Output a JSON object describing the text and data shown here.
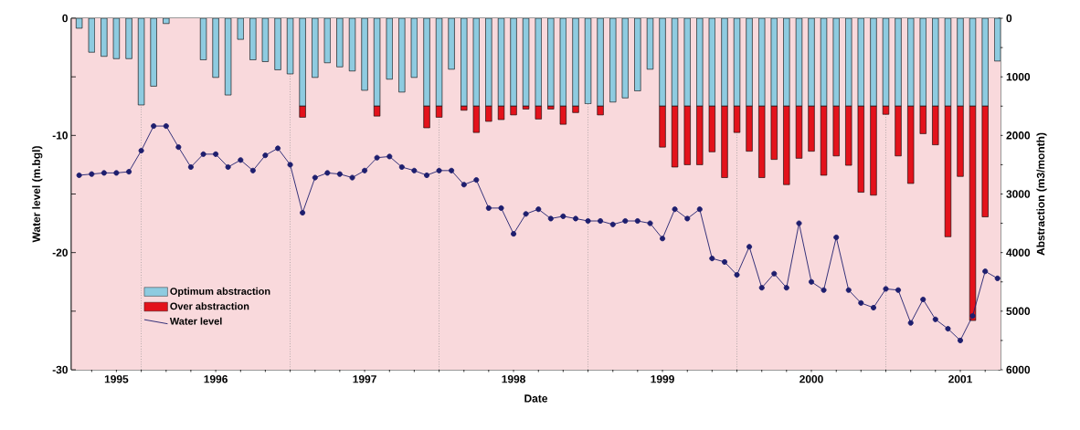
{
  "chart_data": {
    "type": "bar",
    "stacked": true,
    "xlabel": "Date",
    "ylabel": "Water level (m.bgl)",
    "y2label": "Abstraction (m3/month)",
    "x": [
      1995.083,
      1995.167,
      1995.25,
      1995.333,
      1995.417,
      1995.5,
      1995.583,
      1995.667,
      1995.75,
      1995.833,
      1995.917,
      1996,
      1996.083,
      1996.167,
      1996.25,
      1996.333,
      1996.417,
      1996.5,
      1996.583,
      1996.667,
      1996.75,
      1996.833,
      1996.917,
      1997,
      1997.083,
      1997.167,
      1997.25,
      1997.333,
      1997.417,
      1997.5,
      1997.583,
      1997.667,
      1997.75,
      1997.833,
      1997.917,
      1998,
      1998.083,
      1998.167,
      1998.25,
      1998.333,
      1998.417,
      1998.5,
      1998.583,
      1998.667,
      1998.75,
      1998.833,
      1998.917,
      1999,
      1999.083,
      1999.167,
      1999.25,
      1999.333,
      1999.417,
      1999.5,
      1999.583,
      1999.667,
      1999.75,
      1999.833,
      1999.917,
      2000,
      2000.083,
      2000.167,
      2000.25,
      2000.333,
      2000.417,
      2000.5,
      2000.583,
      2000.667,
      2000.75,
      2000.833,
      2000.917,
      2001,
      2001.083,
      2001.167,
      2001.25
    ],
    "series": [
      {
        "name": "Optimum abstraction",
        "axis": "y2",
        "color": "#8ecbe0",
        "values": [
          170,
          580,
          650,
          690,
          690,
          1480,
          1160,
          90,
          null,
          null,
          710,
          1010,
          1310,
          360,
          710,
          740,
          880,
          950,
          1500,
          1010,
          760,
          830,
          900,
          1230,
          1500,
          1040,
          1260,
          1010,
          1500,
          1500,
          870,
          1500,
          1500,
          1500,
          1500,
          1500,
          1500,
          1500,
          1500,
          1500,
          1500,
          1460,
          1500,
          1430,
          1360,
          1240,
          870,
          1500,
          1500,
          1500,
          1500,
          1500,
          1500,
          1500,
          1500,
          1500,
          1500,
          1500,
          1500,
          1500,
          1500,
          1500,
          1500,
          1500,
          1500,
          1500,
          1500,
          1500,
          1500,
          1500,
          1500,
          1500,
          1500,
          1500,
          730
        ]
      },
      {
        "name": "Over abstraction",
        "axis": "y2",
        "color": "#e3121b",
        "values": [
          null,
          null,
          null,
          null,
          null,
          null,
          null,
          null,
          null,
          null,
          null,
          null,
          null,
          null,
          null,
          null,
          null,
          null,
          190,
          null,
          null,
          null,
          null,
          null,
          170,
          null,
          null,
          null,
          370,
          190,
          null,
          70,
          450,
          260,
          230,
          150,
          50,
          220,
          50,
          310,
          110,
          null,
          150,
          null,
          null,
          null,
          null,
          700,
          1040,
          1000,
          1000,
          780,
          1220,
          450,
          770,
          1220,
          910,
          1340,
          890,
          770,
          1180,
          850,
          1010,
          1470,
          1520,
          140,
          850,
          1320,
          470,
          660,
          2230,
          1200,
          3660,
          1890,
          null
        ]
      },
      {
        "name": "Water level",
        "type": "line",
        "axis": "y",
        "color": "#1e1e6e",
        "marker": "circle",
        "values": [
          -13.4,
          -13.3,
          -13.2,
          -13.2,
          -13.1,
          -11.3,
          -9.2,
          -9.2,
          -11.0,
          -12.7,
          -11.6,
          -11.6,
          -12.7,
          -12.1,
          -13.0,
          -11.7,
          -11.1,
          -12.5,
          -16.6,
          -13.6,
          -13.2,
          -13.3,
          -13.6,
          -13.0,
          -11.9,
          -11.8,
          -12.7,
          -13.0,
          -13.4,
          -13.0,
          -13.0,
          -14.2,
          -13.8,
          -16.2,
          -16.2,
          -18.4,
          -16.7,
          -16.3,
          -17.1,
          -16.9,
          -17.1,
          -17.3,
          -17.3,
          -17.6,
          -17.3,
          -17.3,
          -17.5,
          -18.8,
          -16.3,
          -17.1,
          -16.3,
          -20.5,
          -20.8,
          -21.9,
          -19.5,
          -23.0,
          -21.8,
          -23.0,
          -17.5,
          -22.5,
          -23.2,
          -18.7,
          -23.2,
          -24.3,
          -24.7,
          -23.1,
          -23.2,
          -26.0,
          -24.0,
          -25.7,
          -26.5,
          -27.5,
          -25.4,
          -21.6,
          -22.2
        ]
      }
    ],
    "xlim": [
      1995.03,
      2001.27
    ],
    "xticks": [
      {
        "value": 1995.167,
        "label": null
      },
      {
        "value": 1995.333,
        "label": "1995"
      },
      {
        "value": 1995.5,
        "label": null
      },
      {
        "value": 1995.667,
        "label": null
      },
      {
        "value": 1995.833,
        "label": null
      },
      1996,
      {
        "value": 1996.167,
        "label": null
      },
      {
        "value": 1996.333,
        "label": null
      },
      {
        "value": 1996.5,
        "label": null
      },
      {
        "value": 1996.667,
        "label": null
      },
      {
        "value": 1996.833,
        "label": null
      },
      1997,
      {
        "value": 1997.167,
        "label": null
      },
      {
        "value": 1997.333,
        "label": null
      },
      {
        "value": 1997.5,
        "label": null
      },
      {
        "value": 1997.667,
        "label": null
      },
      {
        "value": 1997.833,
        "label": null
      },
      1998,
      {
        "value": 1998.167,
        "label": null
      },
      {
        "value": 1998.333,
        "label": null
      },
      {
        "value": 1998.5,
        "label": null
      },
      {
        "value": 1998.667,
        "label": null
      },
      {
        "value": 1998.833,
        "label": null
      },
      1999,
      {
        "value": 1999.167,
        "label": null
      },
      {
        "value": 1999.333,
        "label": null
      },
      {
        "value": 1999.5,
        "label": null
      },
      {
        "value": 1999.667,
        "label": null
      },
      {
        "value": 1999.833,
        "label": null
      },
      2000,
      {
        "value": 2000.167,
        "label": null
      },
      {
        "value": 2000.333,
        "label": null
      },
      {
        "value": 2000.5,
        "label": null
      },
      {
        "value": 2000.667,
        "label": null
      },
      {
        "value": 2000.833,
        "label": null
      },
      2001,
      {
        "value": 2001.167,
        "label": null
      }
    ],
    "ylim": [
      -30,
      0
    ],
    "yticks": [
      -30,
      {
        "value": -25,
        "label": null
      },
      -20,
      {
        "value": -15,
        "label": null
      },
      -10,
      {
        "value": -5,
        "label": null
      },
      0
    ],
    "y2lim": [
      6000,
      0
    ],
    "y2ticks": [
      0,
      {
        "value": 500,
        "label": null
      },
      1000,
      {
        "value": 1500,
        "label": null
      },
      2000,
      {
        "value": 2500,
        "label": null
      },
      3000,
      {
        "value": 3500,
        "label": null
      },
      4000,
      {
        "value": 4500,
        "label": null
      },
      5000,
      {
        "value": 5500,
        "label": null
      },
      6000
    ],
    "ref_lines": [
      {
        "axis": "x",
        "value": 1995.5,
        "line_style": "dotted",
        "color": "#8c8c8c"
      },
      {
        "axis": "x",
        "value": 1996.5,
        "line_style": "dotted",
        "color": "#8c8c8c"
      },
      {
        "axis": "x",
        "value": 1997.5,
        "line_style": "dotted",
        "color": "#8c8c8c"
      },
      {
        "axis": "x",
        "value": 1998.5,
        "line_style": "dotted",
        "color": "#8c8c8c"
      },
      {
        "axis": "x",
        "value": 1999.5,
        "line_style": "dotted",
        "color": "#8c8c8c"
      },
      {
        "axis": "x",
        "value": 2000.5,
        "line_style": "dotted",
        "color": "#8c8c8c"
      }
    ],
    "legend": "bottom left"
  }
}
